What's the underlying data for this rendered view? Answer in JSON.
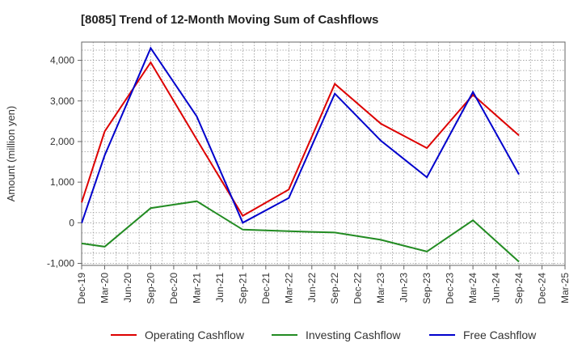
{
  "chart_data": {
    "type": "line",
    "title": "[8085]  Trend of 12-Month Moving Sum of Cashflows",
    "ylabel": "Amount (million yen)",
    "xlabel": "",
    "ylim": [
      -1050,
      4450
    ],
    "yticks": [
      -1000,
      0,
      1000,
      2000,
      3000,
      4000
    ],
    "ytick_labels": [
      "-1,000",
      "0",
      "1,000",
      "2,000",
      "3,000",
      "4,000"
    ],
    "categories": [
      "Dec-19",
      "Mar-20",
      "Jun-20",
      "Sep-20",
      "Dec-20",
      "Mar-21",
      "Jun-21",
      "Sep-21",
      "Dec-21",
      "Mar-22",
      "Jun-22",
      "Sep-22",
      "Dec-22",
      "Mar-23",
      "Jun-23",
      "Sep-23",
      "Dec-23",
      "Mar-24",
      "Jun-24",
      "Sep-24",
      "Dec-24",
      "Mar-25"
    ],
    "grid": true,
    "legend_position": "bottom",
    "series": [
      {
        "name": "Operating Cashflow",
        "color": "#dd0000",
        "values": [
          500,
          2250,
          null,
          3950,
          null,
          2050,
          null,
          170,
          null,
          820,
          null,
          3420,
          null,
          2440,
          null,
          1840,
          null,
          3150,
          null,
          2150,
          null,
          null
        ]
      },
      {
        "name": "Investing Cashflow",
        "color": "#228b22",
        "values": [
          -510,
          -590,
          null,
          360,
          null,
          530,
          null,
          -170,
          null,
          -210,
          null,
          -240,
          null,
          -420,
          null,
          -710,
          null,
          60,
          null,
          -960,
          null,
          null
        ]
      },
      {
        "name": "Free Cashflow",
        "color": "#0000cc",
        "values": [
          -10,
          1660,
          null,
          4300,
          null,
          2620,
          null,
          0,
          null,
          610,
          null,
          3180,
          null,
          2020,
          null,
          1120,
          null,
          3220,
          null,
          1190,
          null,
          null
        ]
      }
    ]
  }
}
